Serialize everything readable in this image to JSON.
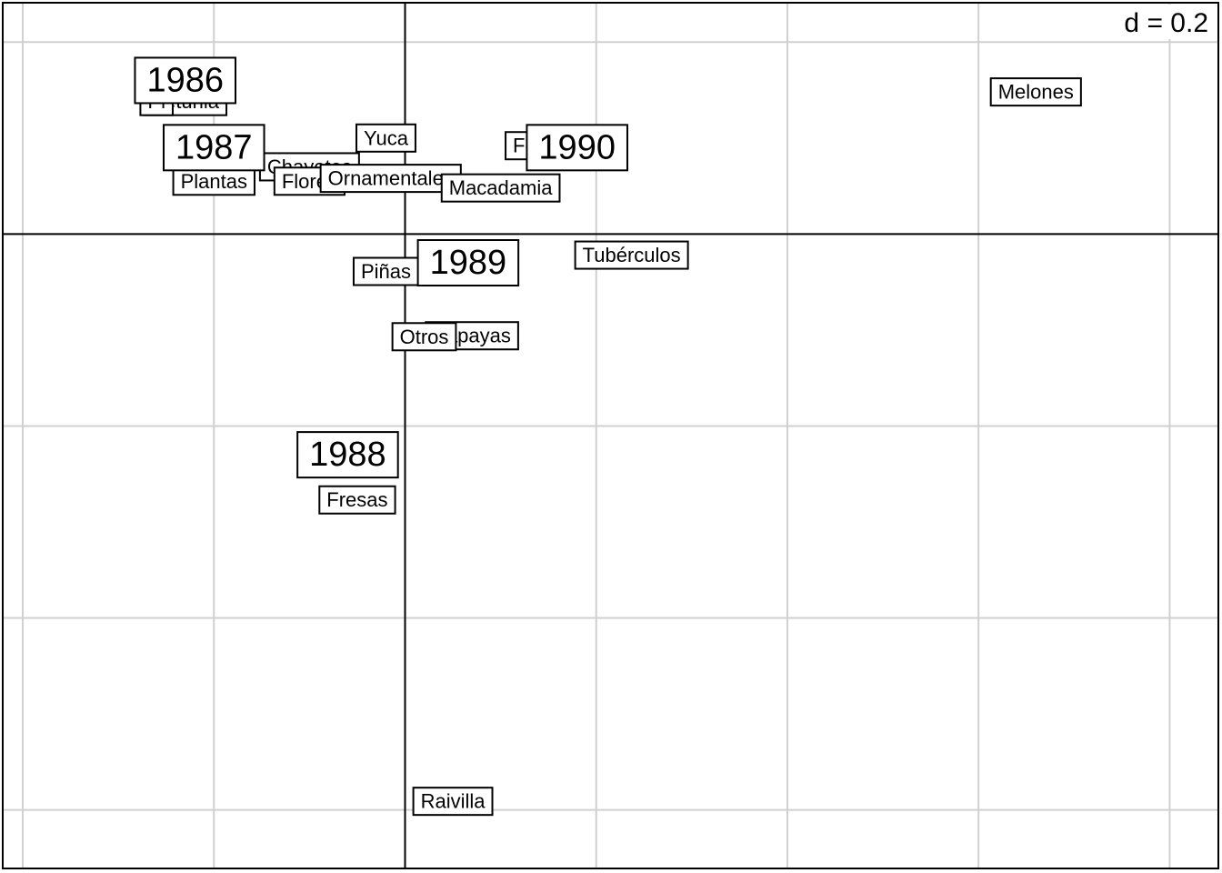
{
  "chart_data": {
    "type": "scatter",
    "scale_label": "d = 0.2",
    "grid": true,
    "xlim": [
      -0.42,
      0.85
    ],
    "ylim": [
      -0.66,
      0.24
    ],
    "series": [
      {
        "points": [
          {
            "label": "1986",
            "x": -0.23,
            "y": 0.16
          },
          {
            "label": "1987",
            "x": -0.2,
            "y": 0.09
          },
          {
            "label": "1988",
            "x": -0.06,
            "y": -0.23
          },
          {
            "label": "1989",
            "x": 0.066,
            "y": -0.03
          },
          {
            "label": "1990",
            "x": 0.18,
            "y": 0.09
          }
        ]
      },
      {
        "points": [
          {
            "label": "Melones",
            "x": 0.66,
            "y": 0.148
          },
          {
            "label": "Petunia",
            "x": -0.23,
            "y": 0.138
          },
          {
            "label": "Pl",
            "x": -0.26,
            "y": 0.138
          },
          {
            "label": "Yuca",
            "x": -0.02,
            "y": 0.1
          },
          {
            "label": "Chayotes",
            "x": -0.1,
            "y": 0.07
          },
          {
            "label": "Plantas",
            "x": -0.2,
            "y": 0.055
          },
          {
            "label": "Flores",
            "x": -0.1,
            "y": 0.055
          },
          {
            "label": "Ornamentales",
            "x": -0.015,
            "y": 0.058
          },
          {
            "label": "Fo",
            "x": 0.125,
            "y": 0.092
          },
          {
            "label": "Macadamia",
            "x": 0.1,
            "y": 0.048
          },
          {
            "label": "Tubérculos",
            "x": 0.237,
            "y": -0.022
          },
          {
            "label": "Piñas",
            "x": -0.02,
            "y": -0.039
          },
          {
            "label": "Papayas",
            "x": 0.07,
            "y": -0.106
          },
          {
            "label": "Otros",
            "x": 0.02,
            "y": -0.107
          },
          {
            "label": "Fresas",
            "x": -0.05,
            "y": -0.277
          },
          {
            "label": "Raivilla",
            "x": 0.05,
            "y": -0.591
          }
        ]
      }
    ]
  }
}
